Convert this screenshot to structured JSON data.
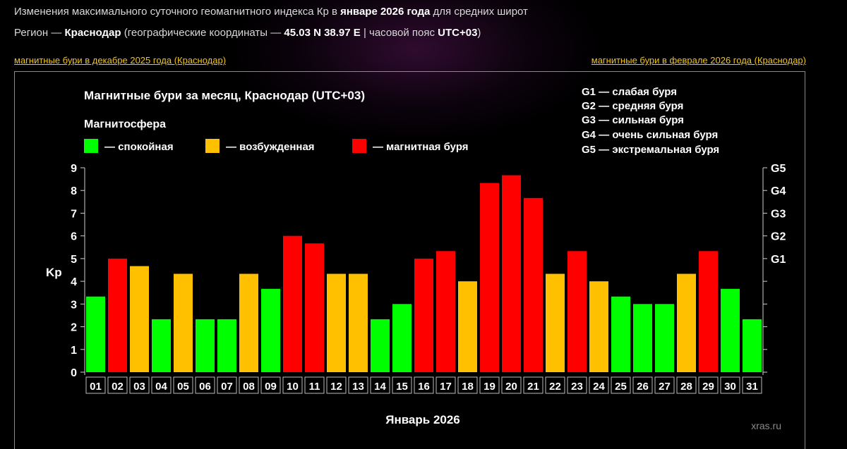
{
  "header": {
    "line1_pre": "Изменения максимального суточного геомагнитного индекса Кр в ",
    "line1_bold": "январе 2026 года",
    "line1_post": " для средних широт",
    "line2_pre": "Регион — ",
    "line2_city": "Краснодар",
    "line2_mid": " (географические координаты — ",
    "line2_coords": "45.03 N 38.97 E",
    "line2_sep": " | часовой пояс ",
    "line2_tz": "UTC+03",
    "line2_post": ")"
  },
  "nav": {
    "prev": "магнитные бури в декабре 2025 года (Краснодар)",
    "next": "магнитные бури в феврале 2026 года (Краснодар)"
  },
  "colors": {
    "quiet": "#00ff00",
    "excited": "#ffc000",
    "storm": "#ff0000",
    "accent_link": "#f0c419"
  },
  "legend": {
    "title": "Магнитосфера",
    "quiet": "— спокойная",
    "excited": "— возбужденная",
    "storm": "— магнитная буря"
  },
  "storm_scale": [
    "G1 — слабая буря",
    "G2 — средняя буря",
    "G3 — сильная буря",
    "G4 — очень сильная буря",
    "G5 — экстремальная буря"
  ],
  "watermark": "xras.ru",
  "chart_data": {
    "type": "bar",
    "title": "Магнитные бури за месяц, Краснодар (UTC+03)",
    "xlabel": "Январь 2026",
    "ylabel": "Kp",
    "ylim": [
      0,
      9
    ],
    "yticks": [
      "0",
      "1",
      "2",
      "3",
      "4",
      "5",
      "6",
      "7",
      "8",
      "9"
    ],
    "right_ticks": [
      {
        "label": "G1",
        "kp": 5
      },
      {
        "label": "G2",
        "kp": 6
      },
      {
        "label": "G3",
        "kp": 7
      },
      {
        "label": "G4",
        "kp": 8
      },
      {
        "label": "G5",
        "kp": 9
      }
    ],
    "categories": [
      "01",
      "02",
      "03",
      "04",
      "05",
      "06",
      "07",
      "08",
      "09",
      "10",
      "11",
      "12",
      "13",
      "14",
      "15",
      "16",
      "17",
      "18",
      "19",
      "20",
      "21",
      "22",
      "23",
      "24",
      "25",
      "26",
      "27",
      "28",
      "29",
      "30",
      "31"
    ],
    "values": [
      3.33,
      5.0,
      4.67,
      2.33,
      4.33,
      2.33,
      2.33,
      4.33,
      3.67,
      6.0,
      5.67,
      4.33,
      4.33,
      2.33,
      3.0,
      5.0,
      5.33,
      4.0,
      8.33,
      8.67,
      7.67,
      4.33,
      5.33,
      4.0,
      3.33,
      3.0,
      3.0,
      4.33,
      5.33,
      3.67,
      2.33
    ],
    "levels": [
      "quiet",
      "storm",
      "excited",
      "quiet",
      "excited",
      "quiet",
      "quiet",
      "excited",
      "quiet",
      "storm",
      "storm",
      "excited",
      "excited",
      "quiet",
      "quiet",
      "storm",
      "storm",
      "excited",
      "storm",
      "storm",
      "storm",
      "excited",
      "storm",
      "excited",
      "quiet",
      "quiet",
      "quiet",
      "excited",
      "storm",
      "quiet",
      "quiet"
    ],
    "grid": false,
    "legend_position": "top"
  }
}
